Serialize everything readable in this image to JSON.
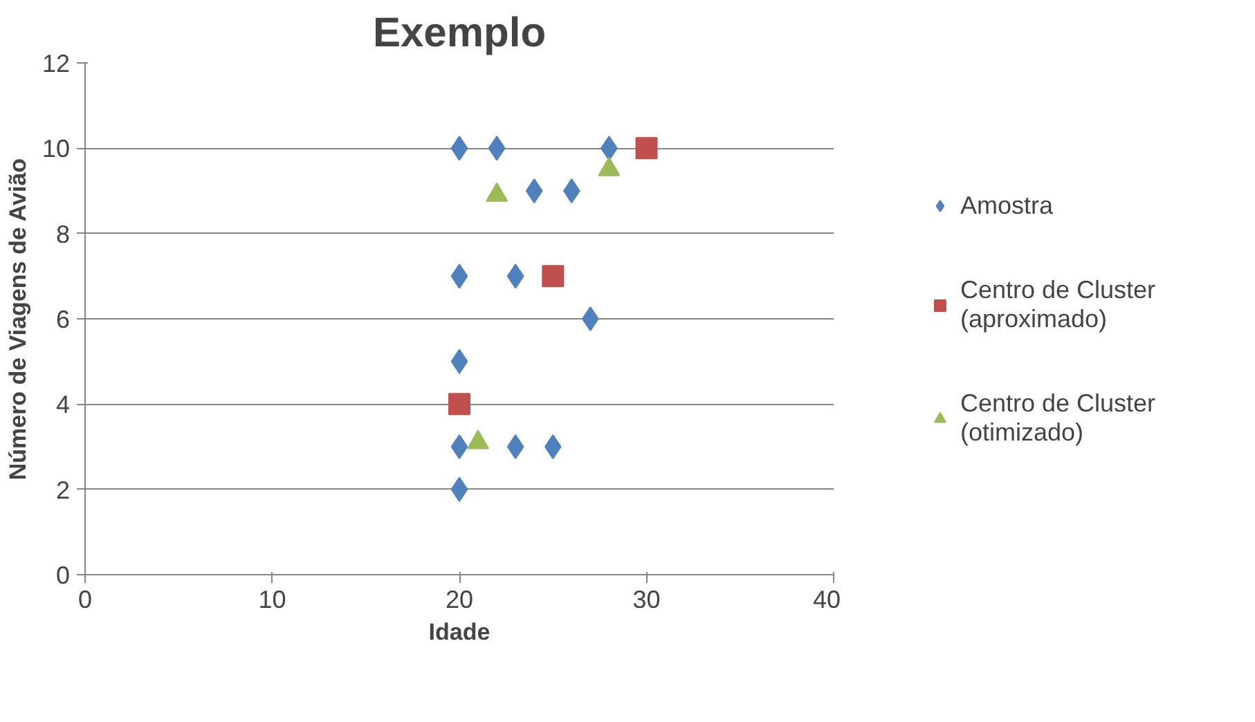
{
  "chart_data": {
    "type": "scatter",
    "title": "Exemplo",
    "xlabel": "Idade",
    "ylabel": "Número de Viagens de Avião",
    "xlim": [
      0,
      40
    ],
    "xticks": [
      0,
      10,
      20,
      30,
      40
    ],
    "ylim": [
      0,
      12
    ],
    "yticks": [
      0,
      2,
      4,
      6,
      8,
      10,
      12
    ],
    "grid": "y",
    "legend": "right",
    "series": [
      {
        "name": "Amostra",
        "color": "#4f81bd",
        "marker": "diamond",
        "x": [
          20,
          22,
          28,
          24,
          26,
          20,
          23,
          27,
          20,
          20,
          23,
          25,
          20
        ],
        "values": [
          10,
          10,
          10,
          9,
          9,
          7,
          7,
          6,
          5,
          3,
          3,
          3,
          2
        ]
      },
      {
        "name": "Centro de Cluster (aproximado)",
        "color": "#c0504d",
        "marker": "square",
        "x": [
          30,
          25,
          20
        ],
        "values": [
          10,
          7,
          4
        ]
      },
      {
        "name": "Centro de Cluster (otimizado)",
        "color": "#9bbb59",
        "marker": "triangle",
        "x": [
          22,
          28,
          21
        ],
        "values": [
          8.9,
          9.5,
          3.1
        ]
      }
    ]
  }
}
